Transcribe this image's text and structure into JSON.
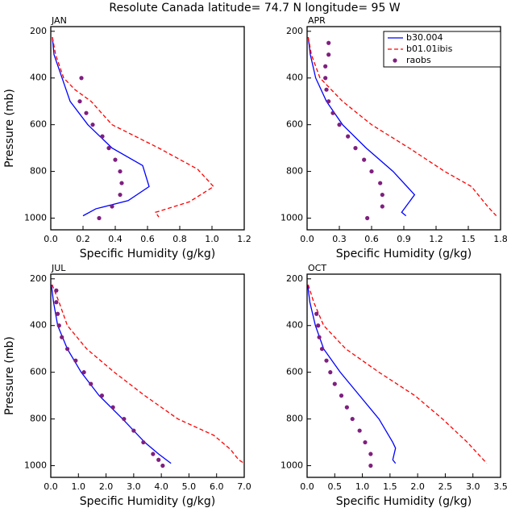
{
  "title": "Resolute Canada  latitude= 74.7 N longitude= 95 W",
  "chart_data": [
    {
      "type": "line",
      "title": "JAN",
      "xlabel": "Specific Humidity (g/kg)",
      "ylabel": "Pressure (mb)",
      "xlim": [
        0,
        1.2
      ],
      "xticks": [
        {
          "value": 0,
          "label": "0.0"
        },
        0.2,
        0.4,
        0.6,
        0.8,
        {
          "value": 1,
          "label": "1.0"
        },
        1.2
      ],
      "ylim": [
        1050,
        180
      ],
      "yticks": [
        200,
        400,
        600,
        800,
        1000
      ],
      "legend": false,
      "series": [
        {
          "color": "#0000ff",
          "mode": "line",
          "dash": false,
          "x": [
            0.01,
            0.02,
            0.07,
            0.12,
            0.23,
            0.38,
            0.57,
            0.61,
            0.48,
            0.28,
            0.2
          ],
          "y": [
            225,
            300,
            400,
            500,
            600,
            700,
            775,
            865,
            925,
            960,
            990
          ]
        },
        {
          "color": "#ff0000",
          "mode": "line",
          "dash": true,
          "x": [
            0.01,
            0.03,
            0.08,
            0.15,
            0.25,
            0.38,
            0.67,
            0.91,
            1.01,
            0.86,
            0.65,
            0.67
          ],
          "y": [
            225,
            300,
            400,
            450,
            500,
            600,
            700,
            790,
            865,
            930,
            975,
            995
          ]
        },
        {
          "color": "#7f1f7f",
          "mode": "markers",
          "x": [
            0.19,
            0.18,
            0.22,
            0.26,
            0.32,
            0.36,
            0.4,
            0.43,
            0.44,
            0.43,
            0.38,
            0.3
          ],
          "y": [
            400,
            500,
            550,
            600,
            650,
            700,
            750,
            800,
            850,
            900,
            950,
            1000
          ]
        }
      ]
    },
    {
      "type": "line",
      "title": "APR",
      "xlabel": "Specific Humidity (g/kg)",
      "xlim": [
        0,
        1.8
      ],
      "xticks": [
        {
          "value": 0,
          "label": "0.0"
        },
        0.3,
        0.6,
        0.9,
        1.2,
        1.5,
        1.8
      ],
      "ylim": [
        1050,
        180
      ],
      "yticks": [
        200,
        400,
        600,
        800,
        1000
      ],
      "legend": true,
      "legend_position": "upper right",
      "series": [
        {
          "name": "b30.004",
          "color": "#0000ff",
          "mode": "line",
          "dash": false,
          "x": [
            0.01,
            0.03,
            0.08,
            0.18,
            0.33,
            0.55,
            0.8,
            1.0,
            0.88,
            0.92
          ],
          "y": [
            225,
            300,
            400,
            500,
            600,
            700,
            800,
            900,
            975,
            990
          ]
        },
        {
          "name": "b01.01ibis",
          "color": "#ff0000",
          "mode": "line",
          "dash": true,
          "x": [
            0.01,
            0.04,
            0.12,
            0.33,
            0.6,
            0.95,
            1.28,
            1.53,
            1.68,
            1.76
          ],
          "y": [
            225,
            300,
            400,
            500,
            600,
            700,
            800,
            865,
            950,
            990
          ]
        },
        {
          "name": "raobs",
          "color": "#7f1f7f",
          "mode": "markers",
          "x": [
            0.2,
            0.2,
            0.17,
            0.17,
            0.18,
            0.2,
            0.24,
            0.3,
            0.38,
            0.45,
            0.53,
            0.6,
            0.68,
            0.7,
            0.7,
            0.56
          ],
          "y": [
            250,
            300,
            350,
            400,
            450,
            500,
            550,
            600,
            650,
            700,
            750,
            800,
            850,
            900,
            950,
            1000
          ]
        }
      ]
    },
    {
      "type": "line",
      "title": "JUL",
      "xlabel": "Specific Humidity (g/kg)",
      "ylabel": "Pressure (mb)",
      "xlim": [
        0,
        7
      ],
      "xticks": [
        {
          "value": 0,
          "label": "0.0"
        },
        {
          "value": 1,
          "label": "1.0"
        },
        {
          "value": 2,
          "label": "2.0"
        },
        {
          "value": 3,
          "label": "3.0"
        },
        {
          "value": 4,
          "label": "4.0"
        },
        {
          "value": 5,
          "label": "5.0"
        },
        {
          "value": 6,
          "label": "6.0"
        },
        {
          "value": 7,
          "label": "7.0"
        }
      ],
      "ylim": [
        1050,
        180
      ],
      "yticks": [
        200,
        400,
        600,
        800,
        1000
      ],
      "legend": false,
      "series": [
        {
          "color": "#0000ff",
          "mode": "line",
          "dash": false,
          "x": [
            0.02,
            0.1,
            0.25,
            0.6,
            1.1,
            1.75,
            2.6,
            3.4,
            3.9,
            4.35
          ],
          "y": [
            225,
            300,
            400,
            500,
            600,
            700,
            800,
            900,
            950,
            990
          ]
        },
        {
          "color": "#ff0000",
          "mode": "line",
          "dash": true,
          "x": [
            0.05,
            0.3,
            0.6,
            1.3,
            2.3,
            3.4,
            4.6,
            5.9,
            6.5,
            6.8,
            7.0
          ],
          "y": [
            225,
            300,
            400,
            500,
            600,
            700,
            800,
            870,
            930,
            975,
            990
          ]
        },
        {
          "color": "#7f1f7f",
          "mode": "markers",
          "x": [
            0.2,
            0.2,
            0.25,
            0.3,
            0.4,
            0.6,
            0.9,
            1.2,
            1.45,
            1.85,
            2.25,
            2.65,
            3.0,
            3.35,
            3.7,
            3.9,
            4.05
          ],
          "y": [
            250,
            300,
            350,
            400,
            450,
            500,
            550,
            600,
            650,
            700,
            750,
            800,
            850,
            900,
            950,
            975,
            1000
          ]
        }
      ]
    },
    {
      "type": "line",
      "title": "OCT",
      "xlabel": "Specific Humidity (g/kg)",
      "xlim": [
        0,
        3.5
      ],
      "xticks": [
        {
          "value": 0,
          "label": "0.0"
        },
        0.5,
        {
          "value": 1,
          "label": "1.0"
        },
        1.5,
        {
          "value": 2,
          "label": "2.0"
        },
        2.5,
        {
          "value": 3,
          "label": "3.0"
        },
        3.5
      ],
      "ylim": [
        1050,
        180
      ],
      "yticks": [
        200,
        400,
        600,
        800,
        1000
      ],
      "legend": false,
      "series": [
        {
          "color": "#0000ff",
          "mode": "line",
          "dash": false,
          "x": [
            0.01,
            0.05,
            0.15,
            0.3,
            0.6,
            0.95,
            1.3,
            1.55,
            1.6,
            1.55,
            1.6
          ],
          "y": [
            225,
            300,
            400,
            500,
            600,
            700,
            800,
            900,
            925,
            975,
            990
          ]
        },
        {
          "color": "#ff0000",
          "mode": "line",
          "dash": true,
          "x": [
            0.02,
            0.12,
            0.3,
            0.7,
            1.3,
            1.95,
            2.45,
            2.9,
            3.25
          ],
          "y": [
            225,
            300,
            400,
            500,
            600,
            700,
            800,
            900,
            990
          ]
        },
        {
          "color": "#7f1f7f",
          "mode": "markers",
          "x": [
            0.17,
            0.2,
            0.22,
            0.27,
            0.35,
            0.42,
            0.5,
            0.62,
            0.72,
            0.82,
            0.95,
            1.05,
            1.15,
            1.15
          ],
          "y": [
            350,
            400,
            450,
            500,
            550,
            600,
            650,
            700,
            750,
            800,
            850,
            900,
            950,
            1000
          ]
        }
      ]
    }
  ]
}
